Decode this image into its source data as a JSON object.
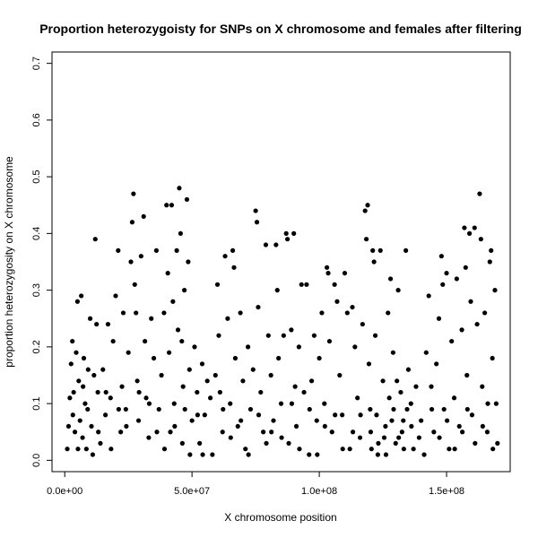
{
  "chart_data": {
    "type": "scatter",
    "title": "Proportion heterozygoisty for SNPs on X chromosome and females after filtering",
    "xlabel": "X chromosome position",
    "ylabel": "proportion heterozygosity on X chromosome",
    "xlim": [
      -5000000,
      175000000
    ],
    "ylim": [
      -0.02,
      0.72
    ],
    "x_ticks": [
      0,
      50000000,
      100000000,
      150000000
    ],
    "x_tick_labels": [
      "0.0e+00",
      "5.0e+07",
      "1.0e+08",
      "1.5e+08"
    ],
    "y_ticks": [
      0.0,
      0.1,
      0.2,
      0.3,
      0.4,
      0.5,
      0.6,
      0.7
    ],
    "y_tick_labels": [
      "0.0",
      "0.1",
      "0.2",
      "0.3",
      "0.4",
      "0.5",
      "0.6",
      "0.7"
    ],
    "grid": false,
    "legend": "none",
    "point_color": "#000000",
    "points": [
      [
        1000000,
        0.02
      ],
      [
        1500000,
        0.06
      ],
      [
        2500000,
        0.17
      ],
      [
        3000000,
        0.21
      ],
      [
        3500000,
        0.12
      ],
      [
        4000000,
        0.05
      ],
      [
        4500000,
        0.19
      ],
      [
        5000000,
        0.28
      ],
      [
        5500000,
        0.14
      ],
      [
        6000000,
        0.07
      ],
      [
        6500000,
        0.29
      ],
      [
        7000000,
        0.04
      ],
      [
        7500000,
        0.18
      ],
      [
        8000000,
        0.1
      ],
      [
        8500000,
        0.02
      ],
      [
        9000000,
        0.09
      ],
      [
        10000000,
        0.25
      ],
      [
        10500000,
        0.06
      ],
      [
        11000000,
        0.01
      ],
      [
        11500000,
        0.15
      ],
      [
        12000000,
        0.39
      ],
      [
        12500000,
        0.24
      ],
      [
        13000000,
        0.12
      ],
      [
        14000000,
        0.03
      ],
      [
        15000000,
        0.16
      ],
      [
        16000000,
        0.08
      ],
      [
        17000000,
        0.24
      ],
      [
        18000000,
        0.11
      ],
      [
        19000000,
        0.21
      ],
      [
        20000000,
        0.29
      ],
      [
        21000000,
        0.37
      ],
      [
        22000000,
        0.05
      ],
      [
        22500000,
        0.13
      ],
      [
        23000000,
        0.26
      ],
      [
        24000000,
        0.09
      ],
      [
        25000000,
        0.19
      ],
      [
        26000000,
        0.35
      ],
      [
        26500000,
        0.42
      ],
      [
        27000000,
        0.47
      ],
      [
        27500000,
        0.31
      ],
      [
        28000000,
        0.26
      ],
      [
        28500000,
        0.14
      ],
      [
        29000000,
        0.07
      ],
      [
        30000000,
        0.36
      ],
      [
        31000000,
        0.43
      ],
      [
        31500000,
        0.21
      ],
      [
        32000000,
        0.11
      ],
      [
        33000000,
        0.04
      ],
      [
        34000000,
        0.25
      ],
      [
        35000000,
        0.18
      ],
      [
        36000000,
        0.37
      ],
      [
        37000000,
        0.09
      ],
      [
        38000000,
        0.15
      ],
      [
        39000000,
        0.26
      ],
      [
        40000000,
        0.45
      ],
      [
        40500000,
        0.33
      ],
      [
        41000000,
        0.19
      ],
      [
        41500000,
        0.05
      ],
      [
        42000000,
        0.45
      ],
      [
        42500000,
        0.28
      ],
      [
        43000000,
        0.1
      ],
      [
        44000000,
        0.37
      ],
      [
        44500000,
        0.23
      ],
      [
        45000000,
        0.48
      ],
      [
        45500000,
        0.4
      ],
      [
        46000000,
        0.21
      ],
      [
        46500000,
        0.13
      ],
      [
        47000000,
        0.3
      ],
      [
        48000000,
        0.46
      ],
      [
        48500000,
        0.35
      ],
      [
        49000000,
        0.16
      ],
      [
        50000000,
        0.07
      ],
      [
        51000000,
        0.2
      ],
      [
        52000000,
        0.12
      ],
      [
        53000000,
        0.03
      ],
      [
        54000000,
        0.17
      ],
      [
        55000000,
        0.08
      ],
      [
        56000000,
        0.14
      ],
      [
        58000000,
        0.01
      ],
      [
        60000000,
        0.31
      ],
      [
        60500000,
        0.22
      ],
      [
        61000000,
        0.12
      ],
      [
        62000000,
        0.05
      ],
      [
        63000000,
        0.36
      ],
      [
        64000000,
        0.25
      ],
      [
        65000000,
        0.1
      ],
      [
        66000000,
        0.37
      ],
      [
        66500000,
        0.34
      ],
      [
        67000000,
        0.18
      ],
      [
        68000000,
        0.06
      ],
      [
        69000000,
        0.26
      ],
      [
        70000000,
        0.14
      ],
      [
        71000000,
        0.02
      ],
      [
        72000000,
        0.2
      ],
      [
        73000000,
        0.09
      ],
      [
        74000000,
        0.16
      ],
      [
        75000000,
        0.44
      ],
      [
        75500000,
        0.42
      ],
      [
        76000000,
        0.27
      ],
      [
        77000000,
        0.12
      ],
      [
        78000000,
        0.05
      ],
      [
        79000000,
        0.38
      ],
      [
        80000000,
        0.22
      ],
      [
        81000000,
        0.15
      ],
      [
        82000000,
        0.07
      ],
      [
        83000000,
        0.38
      ],
      [
        83500000,
        0.3
      ],
      [
        84000000,
        0.18
      ],
      [
        85000000,
        0.1
      ],
      [
        86000000,
        0.22
      ],
      [
        87000000,
        0.4
      ],
      [
        87500000,
        0.39
      ],
      [
        88000000,
        0.03
      ],
      [
        89000000,
        0.23
      ],
      [
        90000000,
        0.4
      ],
      [
        90500000,
        0.13
      ],
      [
        91000000,
        0.06
      ],
      [
        92000000,
        0.2
      ],
      [
        93000000,
        0.31
      ],
      [
        94000000,
        0.12
      ],
      [
        95000000,
        0.31
      ],
      [
        96000000,
        0.01
      ],
      [
        97000000,
        0.14
      ],
      [
        98000000,
        0.22
      ],
      [
        99000000,
        0.07
      ],
      [
        100000000,
        0.18
      ],
      [
        101000000,
        0.26
      ],
      [
        102000000,
        0.1
      ],
      [
        103000000,
        0.34
      ],
      [
        103500000,
        0.33
      ],
      [
        104000000,
        0.21
      ],
      [
        105000000,
        0.05
      ],
      [
        106000000,
        0.31
      ],
      [
        107000000,
        0.28
      ],
      [
        108000000,
        0.15
      ],
      [
        109000000,
        0.08
      ],
      [
        110000000,
        0.33
      ],
      [
        111000000,
        0.26
      ],
      [
        112000000,
        0.02
      ],
      [
        113000000,
        0.27
      ],
      [
        114000000,
        0.2
      ],
      [
        115000000,
        0.11
      ],
      [
        116000000,
        0.04
      ],
      [
        117000000,
        0.24
      ],
      [
        118000000,
        0.44
      ],
      [
        118500000,
        0.39
      ],
      [
        119000000,
        0.45
      ],
      [
        119500000,
        0.17
      ],
      [
        120000000,
        0.09
      ],
      [
        121000000,
        0.37
      ],
      [
        121500000,
        0.35
      ],
      [
        122000000,
        0.22
      ],
      [
        123000000,
        0.01
      ],
      [
        124000000,
        0.37
      ],
      [
        125000000,
        0.14
      ],
      [
        126000000,
        0.06
      ],
      [
        127000000,
        0.26
      ],
      [
        128000000,
        0.32
      ],
      [
        129000000,
        0.19
      ],
      [
        130000000,
        0.03
      ],
      [
        131000000,
        0.3
      ],
      [
        132000000,
        0.12
      ],
      [
        133000000,
        0.07
      ],
      [
        134000000,
        0.37
      ],
      [
        135000000,
        0.16
      ],
      [
        136000000,
        0.1
      ],
      [
        137000000,
        0.02
      ],
      [
        138000000,
        0.13
      ],
      [
        140000000,
        0.07
      ],
      [
        142000000,
        0.19
      ],
      [
        143000000,
        0.29
      ],
      [
        144000000,
        0.13
      ],
      [
        145000000,
        0.05
      ],
      [
        146000000,
        0.17
      ],
      [
        147000000,
        0.25
      ],
      [
        148000000,
        0.36
      ],
      [
        148500000,
        0.31
      ],
      [
        149000000,
        0.09
      ],
      [
        150000000,
        0.33
      ],
      [
        151000000,
        0.02
      ],
      [
        152000000,
        0.21
      ],
      [
        153000000,
        0.11
      ],
      [
        154000000,
        0.32
      ],
      [
        155000000,
        0.06
      ],
      [
        156000000,
        0.23
      ],
      [
        157000000,
        0.41
      ],
      [
        157500000,
        0.34
      ],
      [
        158000000,
        0.15
      ],
      [
        159000000,
        0.4
      ],
      [
        159500000,
        0.28
      ],
      [
        160000000,
        0.08
      ],
      [
        161000000,
        0.41
      ],
      [
        162000000,
        0.24
      ],
      [
        163000000,
        0.47
      ],
      [
        163500000,
        0.39
      ],
      [
        164000000,
        0.13
      ],
      [
        165000000,
        0.26
      ],
      [
        166000000,
        0.05
      ],
      [
        167000000,
        0.35
      ],
      [
        167500000,
        0.37
      ],
      [
        168000000,
        0.18
      ],
      [
        169000000,
        0.3
      ],
      [
        169500000,
        0.1
      ],
      [
        170000000,
        0.03
      ],
      [
        2000000,
        0.11
      ],
      [
        3200000,
        0.08
      ],
      [
        5200000,
        0.02
      ],
      [
        7200000,
        0.13
      ],
      [
        9200000,
        0.16
      ],
      [
        13200000,
        0.05
      ],
      [
        16200000,
        0.12
      ],
      [
        18200000,
        0.02
      ],
      [
        21200000,
        0.09
      ],
      [
        24200000,
        0.06
      ],
      [
        29200000,
        0.12
      ],
      [
        33200000,
        0.1
      ],
      [
        36200000,
        0.05
      ],
      [
        39200000,
        0.02
      ],
      [
        43200000,
        0.06
      ],
      [
        46200000,
        0.03
      ],
      [
        47200000,
        0.09
      ],
      [
        49200000,
        0.01
      ],
      [
        52200000,
        0.08
      ],
      [
        54200000,
        0.01
      ],
      [
        57200000,
        0.11
      ],
      [
        59200000,
        0.15
      ],
      [
        62200000,
        0.09
      ],
      [
        65200000,
        0.04
      ],
      [
        69200000,
        0.07
      ],
      [
        72200000,
        0.01
      ],
      [
        76200000,
        0.08
      ],
      [
        79200000,
        0.03
      ],
      [
        81200000,
        0.05
      ],
      [
        85200000,
        0.04
      ],
      [
        89200000,
        0.1
      ],
      [
        92200000,
        0.02
      ],
      [
        96200000,
        0.09
      ],
      [
        99200000,
        0.01
      ],
      [
        102200000,
        0.06
      ],
      [
        106200000,
        0.08
      ],
      [
        109200000,
        0.02
      ],
      [
        113200000,
        0.05
      ],
      [
        116200000,
        0.08
      ],
      [
        120200000,
        0.05
      ],
      [
        123200000,
        0.03
      ],
      [
        126200000,
        0.01
      ],
      [
        129200000,
        0.09
      ],
      [
        131200000,
        0.04
      ],
      [
        133200000,
        0.02
      ],
      [
        136200000,
        0.06
      ],
      [
        139200000,
        0.04
      ],
      [
        141200000,
        0.01
      ],
      [
        144200000,
        0.09
      ],
      [
        147200000,
        0.04
      ],
      [
        150200000,
        0.07
      ],
      [
        153200000,
        0.02
      ],
      [
        156200000,
        0.05
      ],
      [
        158200000,
        0.09
      ],
      [
        161200000,
        0.03
      ],
      [
        164200000,
        0.06
      ],
      [
        166200000,
        0.1
      ],
      [
        168200000,
        0.02
      ],
      [
        120500000,
        0.02
      ],
      [
        125500000,
        0.04
      ],
      [
        128500000,
        0.07
      ],
      [
        132500000,
        0.05
      ],
      [
        134500000,
        0.09
      ],
      [
        122500000,
        0.08
      ],
      [
        127500000,
        0.11
      ],
      [
        130500000,
        0.14
      ]
    ]
  }
}
